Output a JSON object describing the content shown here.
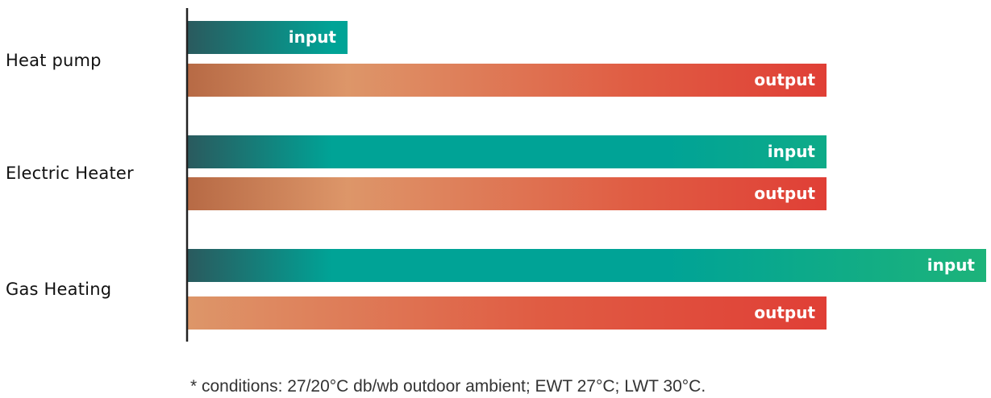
{
  "chart_data": {
    "type": "bar",
    "orientation": "horizontal",
    "categories": [
      "Heat pump",
      "Electric Heater",
      "Gas Heating"
    ],
    "series": [
      {
        "name": "input",
        "values": [
          1.0,
          4.0,
          5.0
        ]
      },
      {
        "name": "output",
        "values": [
          4.0,
          4.0,
          4.0
        ]
      }
    ],
    "xlim": [
      0,
      5
    ],
    "grid": false,
    "legend": "none",
    "footnote": "* conditions: 27/20°C db/wb outdoor ambient; EWT 27°C; LWT 30°C."
  },
  "colors": {
    "input_gradient": [
      "#2a5a5e",
      "#00a396",
      "#1db37a"
    ],
    "output_gradient": [
      "#b76a45",
      "#dd9669",
      "#e05c43",
      "#e03f36"
    ],
    "axis": "#222222",
    "label": "#111111",
    "footnote": "#333333"
  }
}
